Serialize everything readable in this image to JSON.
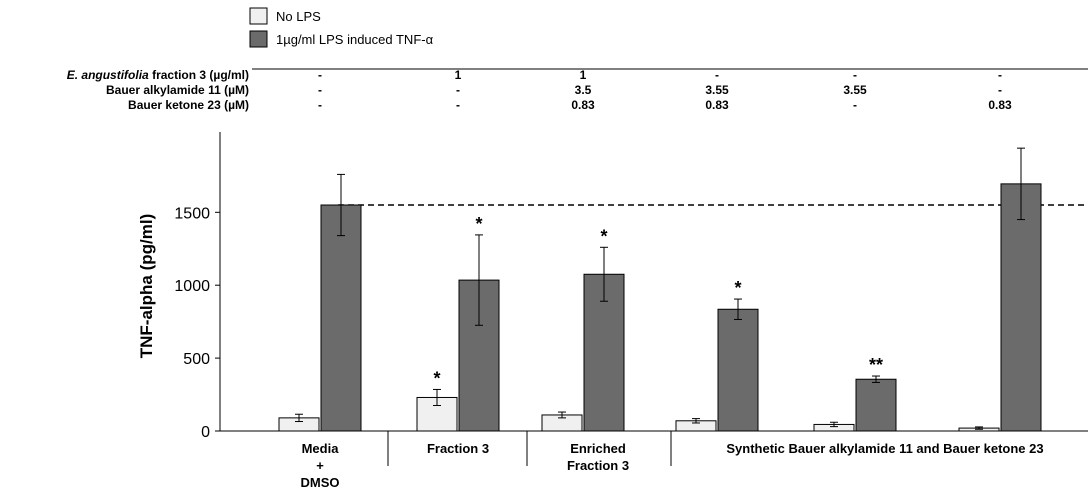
{
  "chart_data": {
    "type": "bar",
    "ylabel": "TNF-alpha (pg/ml)",
    "ylim": [
      0,
      2000
    ],
    "yticks": [
      0,
      500,
      1000,
      1500
    ],
    "reference_line": 1550,
    "legend": {
      "position": "top-left"
    },
    "series": [
      {
        "name": "No LPS",
        "color": "#f0f0f0",
        "values": [
          90,
          230,
          110,
          70,
          45,
          20
        ],
        "errors": [
          25,
          55,
          20,
          15,
          15,
          8
        ],
        "stars": [
          "",
          "*",
          "",
          "",
          "",
          ""
        ]
      },
      {
        "name": "1µg/ml LPS induced TNF-α",
        "color": "#6b6b6b",
        "values": [
          1550,
          1035,
          1075,
          835,
          355,
          1695
        ],
        "errors": [
          210,
          310,
          185,
          70,
          22,
          245
        ],
        "stars": [
          "",
          "*",
          "*",
          "*",
          "**",
          ""
        ]
      }
    ],
    "conditions": [
      {
        "label_italic": "E. angustifolia",
        "label_rest": " fraction 3 (µg/ml)",
        "values": [
          "-",
          "1",
          "1",
          "-",
          "-",
          "-"
        ]
      },
      {
        "label_italic": "",
        "label_rest": "Bauer alkylamide 11 (µM)",
        "values": [
          "-",
          "-",
          "3.5",
          "3.55",
          "3.55",
          "-"
        ]
      },
      {
        "label_italic": "",
        "label_rest": "Bauer ketone 23 (µM)",
        "values": [
          "-",
          "-",
          "0.83",
          "0.83",
          "-",
          "0.83"
        ]
      }
    ],
    "groups": [
      {
        "lines": [
          "Media",
          "+",
          "DMSO"
        ]
      },
      {
        "lines": [
          "Fraction 3"
        ]
      },
      {
        "lines": [
          "Enriched",
          "Fraction 3"
        ]
      },
      {
        "lines": [
          "Synthetic Bauer alkylamide 11 and Bauer ketone 23"
        ]
      }
    ]
  }
}
